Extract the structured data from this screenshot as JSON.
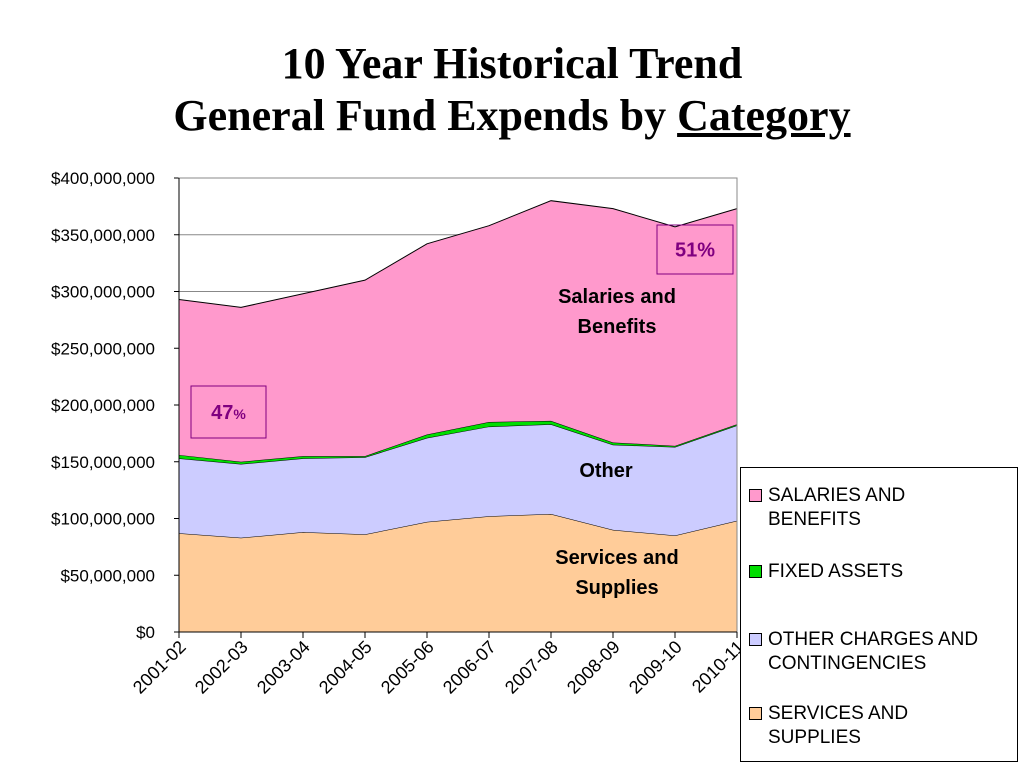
{
  "title": {
    "line1": "10 Year Historical Trend",
    "line2_prefix": "General Fund Expends by",
    "line2_underlined": "Category"
  },
  "chart_data": {
    "type": "area",
    "stacked": true,
    "categories": [
      "2001-02",
      "2002-03",
      "2003-04",
      "2004-05",
      "2005-06",
      "2006-07",
      "2007-08",
      "2008-09",
      "2009-10",
      "2010-11"
    ],
    "series": [
      {
        "name": "SERVICES AND SUPPLIES",
        "color": "#FFCC99",
        "values": [
          87000000,
          83000000,
          88000000,
          86000000,
          97000000,
          102000000,
          104000000,
          90000000,
          85000000,
          98000000
        ]
      },
      {
        "name": "OTHER CHARGES AND CONTINGENCIES",
        "color": "#CCCCFF",
        "values": [
          66000000,
          65000000,
          65000000,
          68000000,
          74000000,
          79000000,
          79000000,
          75000000,
          78000000,
          84000000
        ]
      },
      {
        "name": "FIXED ASSETS",
        "color": "#00DD00",
        "values": [
          3000000,
          2000000,
          2000000,
          1000000,
          3000000,
          4000000,
          3000000,
          2000000,
          1000000,
          1000000
        ]
      },
      {
        "name": "SALARIES AND BENEFITS",
        "color": "#FF99CC",
        "values": [
          137000000,
          136000000,
          143000000,
          155000000,
          168000000,
          173000000,
          194000000,
          206000000,
          193000000,
          190000000
        ]
      }
    ],
    "ylim": [
      0,
      400000000
    ],
    "yticks": [
      0,
      50000000,
      100000000,
      150000000,
      200000000,
      250000000,
      300000000,
      350000000,
      400000000
    ],
    "ytick_labels": [
      "$0",
      "$50,000,000",
      "$100,000,000",
      "$150,000,000",
      "$200,000,000",
      "$250,000,000",
      "$300,000,000",
      "$350,000,000",
      "$400,000,000"
    ],
    "grid": true,
    "legend_position": "bottom-right",
    "annotations": [
      {
        "text_lines": [
          "Salaries and",
          "Benefits"
        ]
      },
      {
        "text_lines": [
          "Other"
        ]
      },
      {
        "text_lines": [
          "Services and",
          "Supplies"
        ]
      }
    ],
    "percent_labels": [
      {
        "number": "47",
        "unit": "%"
      },
      {
        "number": "51%",
        "unit": ""
      }
    ]
  },
  "legend": {
    "items": [
      {
        "lines": [
          "SALARIES AND",
          "BENEFITS"
        ],
        "color": "#FF99CC"
      },
      {
        "lines": [
          "FIXED ASSETS"
        ],
        "color": "#00DD00"
      },
      {
        "lines": [
          "OTHER CHARGES AND",
          "CONTINGENCIES"
        ],
        "color": "#CCCCFF"
      },
      {
        "lines": [
          "SERVICES AND",
          "SUPPLIES"
        ],
        "color": "#FFCC99"
      }
    ]
  }
}
